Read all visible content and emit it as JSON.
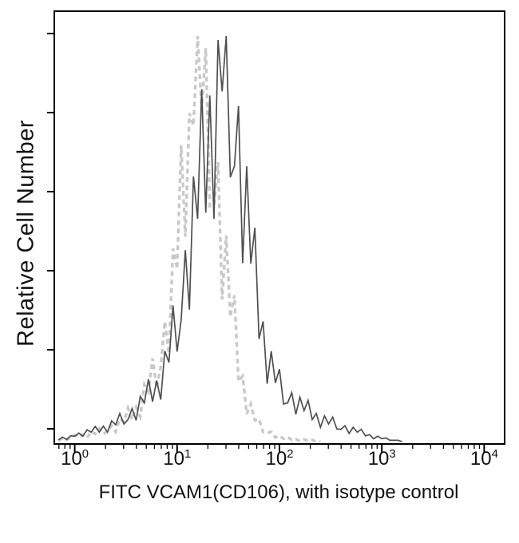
{
  "figure": {
    "background": "#ffffff",
    "axis_color": "#000000",
    "text_color": "#111111"
  },
  "chart_data": {
    "type": "line",
    "chart_kind": "flow-cytometry-histogram-overlay",
    "title": "",
    "xlabel": "FITC VCAM1(CD106), with isotype control",
    "ylabel": "Relative Cell Number",
    "x_scale": "log10",
    "xlim_log10": [
      -0.2,
      4.2
    ],
    "ylim": [
      0,
      100
    ],
    "grid": false,
    "legend": "none",
    "x_ticks": [
      {
        "base": "10",
        "exp": "0",
        "value": 1
      },
      {
        "base": "10",
        "exp": "1",
        "value": 10
      },
      {
        "base": "10",
        "exp": "2",
        "value": 100
      },
      {
        "base": "10",
        "exp": "3",
        "value": 1000
      },
      {
        "base": "10",
        "exp": "4",
        "value": 10000
      }
    ],
    "y_ticks": {
      "labels_visible": false,
      "count": 6
    },
    "series": [
      {
        "name": "Isotype control",
        "line_style": "dashed",
        "color": "#c9c9c9",
        "stroke_width": 3.4,
        "dash_pattern": "6 4.5",
        "x_log10_start": -0.16,
        "x_log10_step": 0.04,
        "values": [
          0.6,
          1.2,
          0.8,
          1.4,
          2.0,
          1.4,
          2.1,
          1.4,
          2.8,
          2.3,
          3.6,
          2.3,
          2.9,
          4.3,
          2.8,
          6.0,
          5.3,
          8.6,
          5.8,
          8.8,
          6.5,
          14.4,
          12.6,
          20.8,
          13.5,
          18.7,
          29.9,
          22.0,
          47.8,
          42.8,
          73.2,
          50.7,
          81.0,
          78,
          100,
          81.9,
          97,
          58.2,
          58.5,
          69.0,
          35.3,
          51.0,
          31.0,
          36.3,
          15.2,
          16.5,
          7.2,
          9.6,
          5.6,
          5.9,
          2.7,
          2.5,
          2.8,
          1.4,
          1.8,
          1.1,
          1.5,
          0.8,
          1.0,
          0.5,
          0.9,
          0.6,
          0.8,
          0.4,
          0.4
        ]
      },
      {
        "name": "FITC VCAM1(CD106)",
        "line_style": "solid",
        "color": "#4f4f4f",
        "stroke_width": 1.7,
        "dash_pattern": "",
        "x_log10_start": -0.16,
        "x_log10_step": 0.04,
        "values": [
          0.8,
          1.5,
          0.9,
          1.8,
          1.7,
          2.5,
          1.7,
          3.3,
          2.7,
          4.1,
          2.7,
          4.2,
          2.7,
          5.5,
          4.5,
          7.3,
          4.7,
          5.8,
          8.5,
          5.6,
          11.5,
          9.9,
          15.7,
          10.2,
          15.4,
          10.7,
          22.6,
          19.8,
          33.8,
          22.5,
          30.3,
          47.4,
          32.8,
          65.5,
          55.1,
          86.9,
          56.6,
          85.4,
          55.1,
          99,
          86.4,
          100,
          65.3,
          68,
          82.8,
          44.2,
          68,
          44.1,
          52.9,
          25.6,
          29.9,
          14.6,
          22.6,
          14.8,
          18.2,
          9.6,
          9.9,
          12.4,
          7.1,
          11.3,
          8,
          10.5,
          5.8,
          7.3,
          3.9,
          6.7,
          4.7,
          6.4,
          3.5,
          3.4,
          4.3,
          2.4,
          3.9,
          2.7,
          3.4,
          1.8,
          2.1,
          1.1,
          1.7,
          1.1,
          1.3,
          0.7,
          0.7,
          0.7,
          0.4
        ]
      }
    ]
  }
}
